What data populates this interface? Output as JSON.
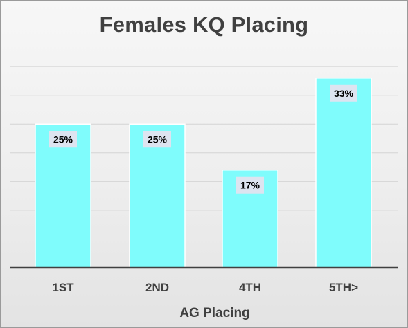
{
  "chart_data": {
    "type": "bar",
    "title": "Females KQ Placing",
    "xlabel": "AG Placing",
    "ylabel": "",
    "categories": [
      "1ST",
      "2ND",
      "4TH",
      "5TH>"
    ],
    "values": [
      25,
      25,
      17,
      33
    ],
    "data_labels": [
      "25%",
      "25%",
      "17%",
      "33%"
    ],
    "ylim": [
      0,
      35
    ],
    "grid": true,
    "bar_color": "#7ffcfc",
    "label_box_color": "#dde4f0",
    "legend": "none"
  }
}
